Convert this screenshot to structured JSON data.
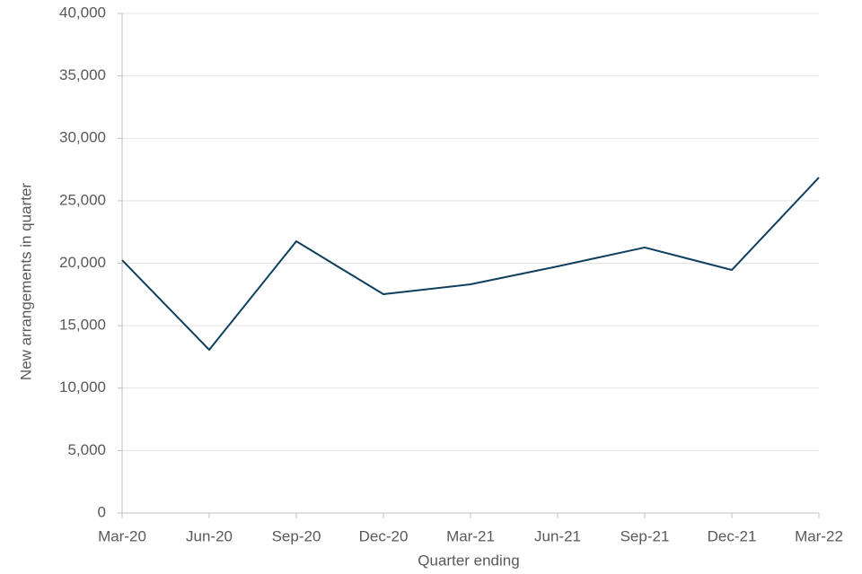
{
  "chart_data": {
    "type": "line",
    "x_label": "Quarter ending",
    "y_label": "New arrangements in quarter",
    "categories": [
      "Mar-20",
      "Jun-20",
      "Sep-20",
      "Dec-20",
      "Mar-21",
      "Jun-21",
      "Sep-21",
      "Dec-21",
      "Mar-22"
    ],
    "series": [
      {
        "name": "New arrangements",
        "color": "#0f3f5f",
        "values": [
          20250,
          13070,
          21760,
          17520,
          18310,
          19750,
          21260,
          19460,
          26860
        ]
      }
    ],
    "ylim": [
      0,
      40000
    ],
    "yticks": [
      0,
      {
        "value": 5000,
        "label": "5,000"
      },
      {
        "value": 10000,
        "label": "10,000"
      },
      {
        "value": 15000,
        "label": "15,000"
      },
      {
        "value": 20000,
        "label": "20,000"
      },
      {
        "value": 25000,
        "label": "25,000"
      },
      {
        "value": 30000,
        "label": "30,000"
      },
      {
        "value": 35000,
        "label": "35,000"
      },
      {
        "value": 40000,
        "label": "40,000"
      }
    ],
    "grid": true
  }
}
